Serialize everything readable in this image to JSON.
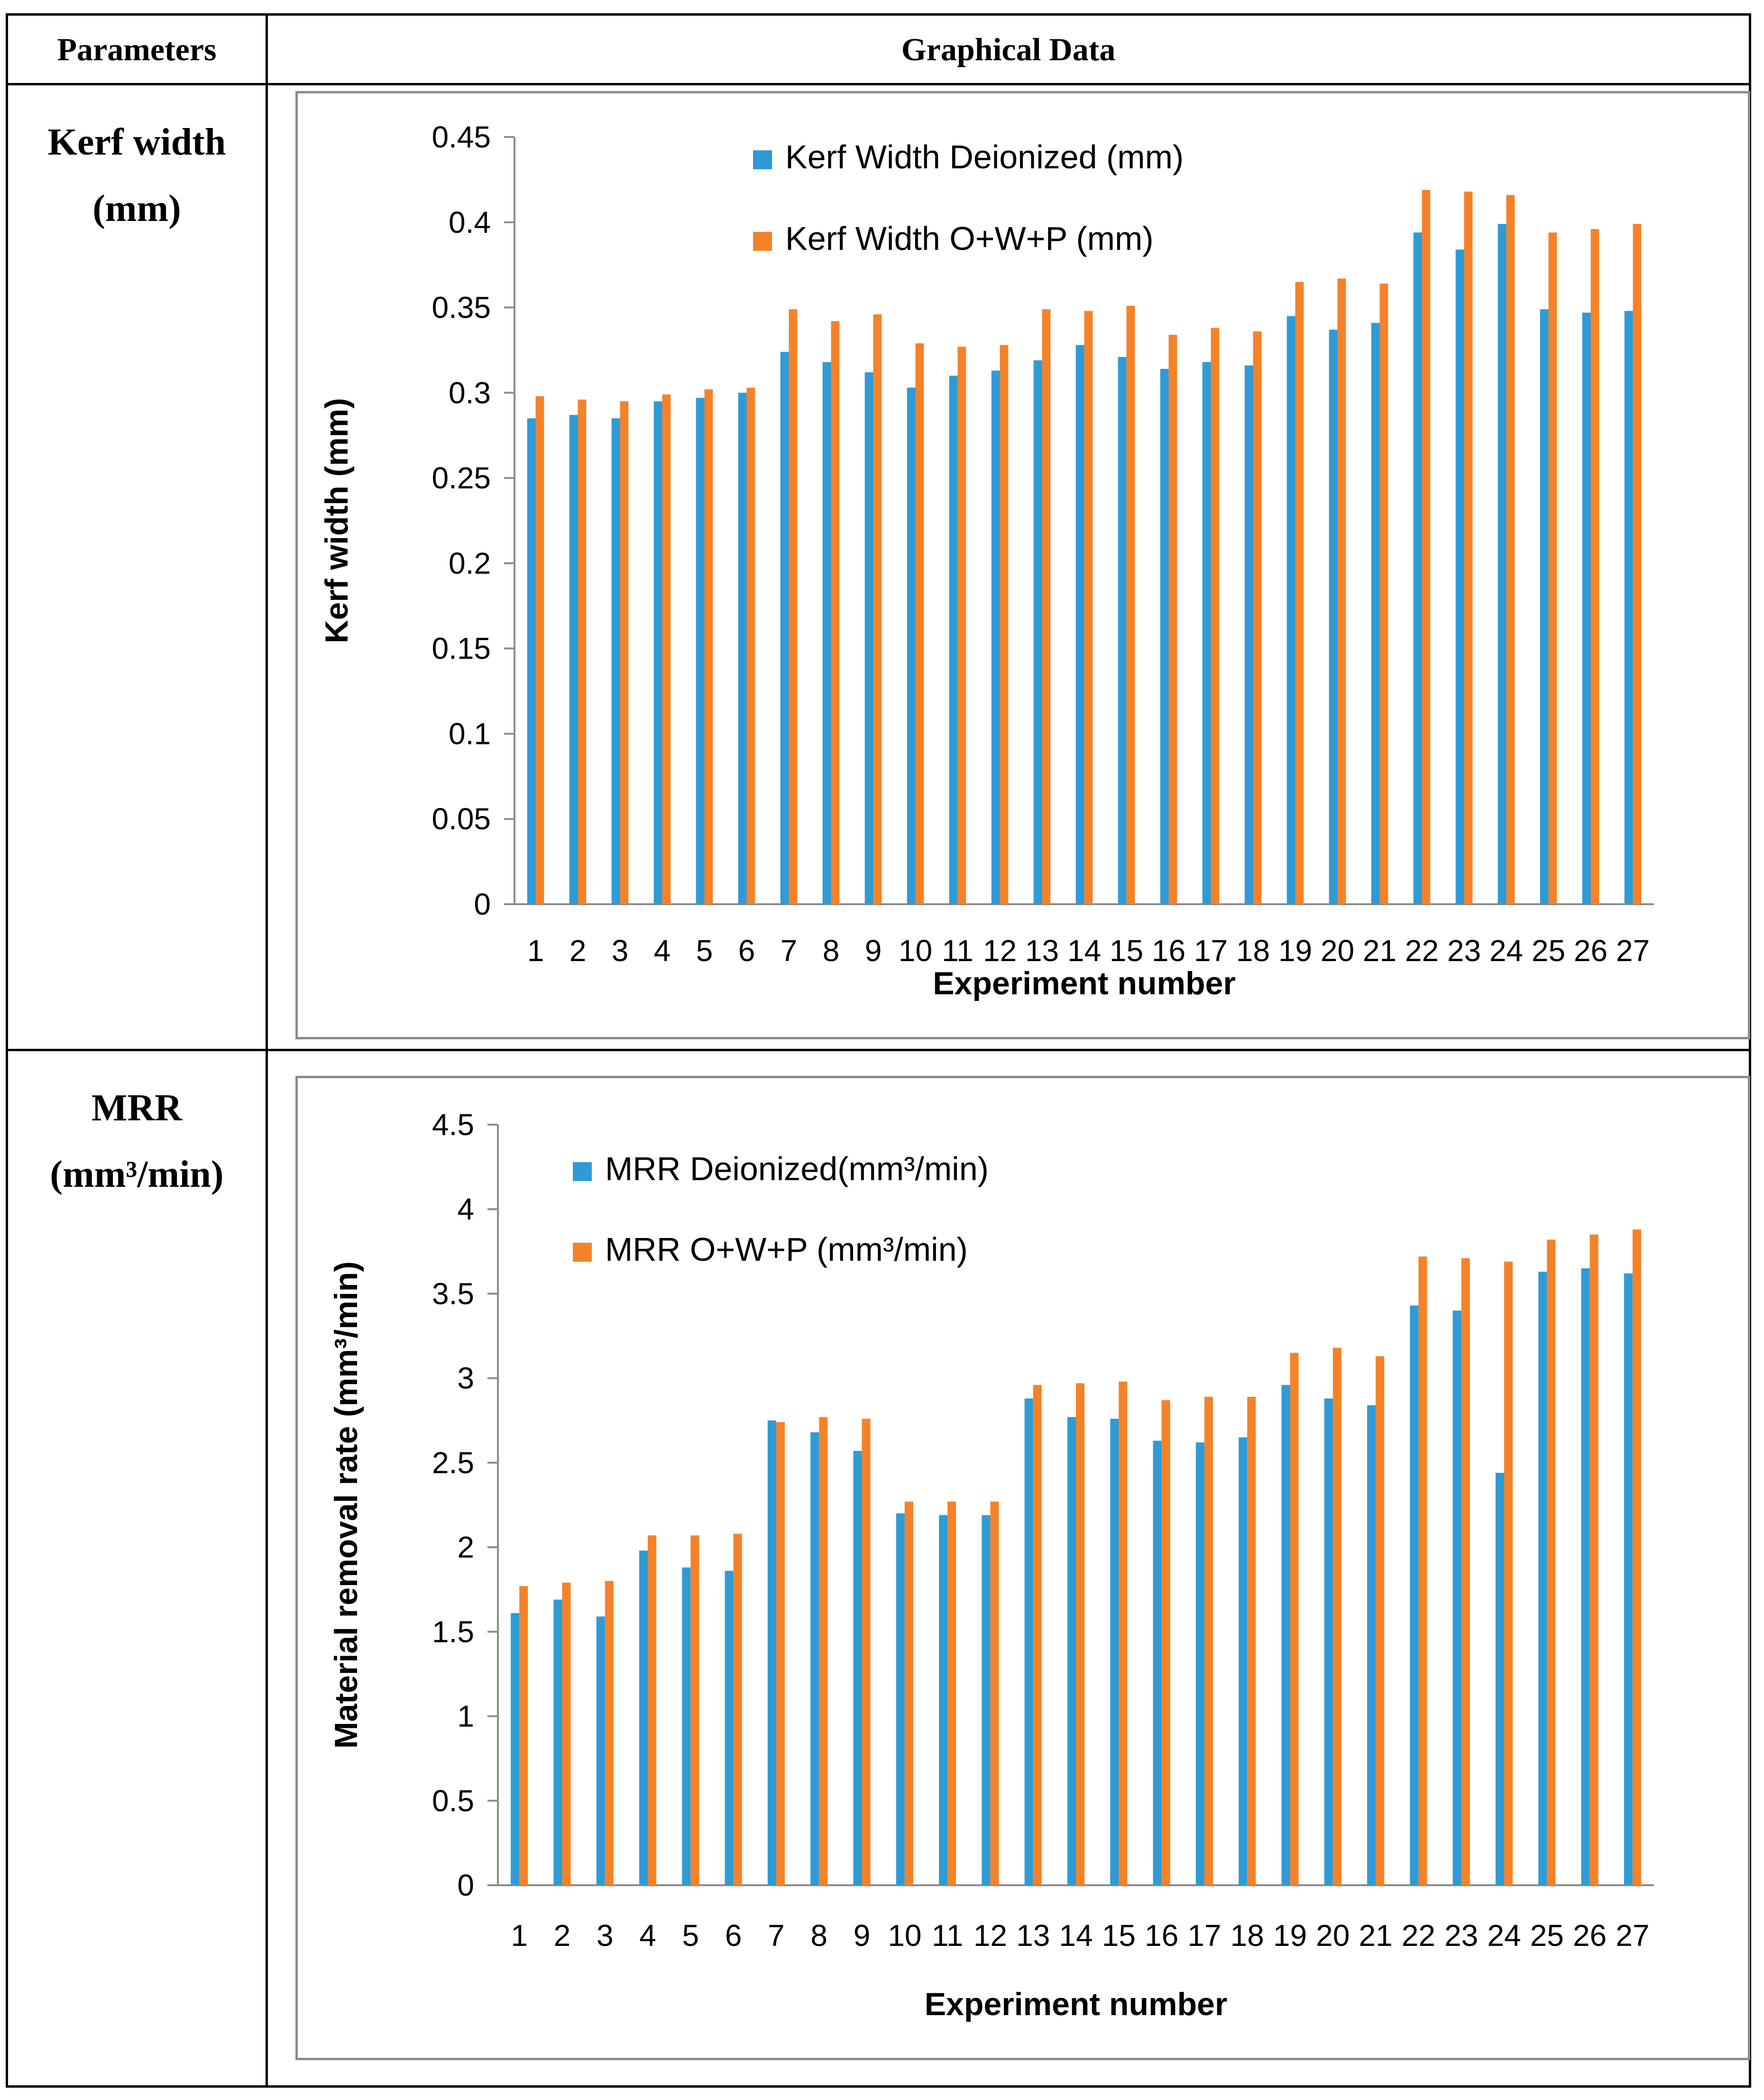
{
  "table": {
    "header_parameters": "Parameters",
    "header_graphical": "Graphical Data"
  },
  "rows": [
    {
      "param_line1": "Kerf width",
      "param_line2": "(mm)"
    },
    {
      "param_line1": "MRR",
      "param_line2": "(mm³/min)"
    }
  ],
  "colors": {
    "deionized": "#2E9BD6",
    "owp": "#F58228",
    "axis": "#8c8c8c"
  },
  "chart_data": [
    {
      "type": "bar",
      "title": "",
      "xlabel": "Experiment number",
      "ylabel": "Kerf width (mm)",
      "ylim": [
        0,
        0.45
      ],
      "yticks": [
        0,
        0.05,
        0.1,
        0.15,
        0.2,
        0.25,
        0.3,
        0.35,
        0.4,
        0.45
      ],
      "ytick_labels": [
        "0",
        "0.05",
        "0.1",
        "0.15",
        "0.2",
        "0.25",
        "0.3",
        "0.35",
        "0.4",
        "0.45"
      ],
      "legend_position": "top-center",
      "grid": false,
      "categories": [
        "1",
        "2",
        "3",
        "4",
        "5",
        "6",
        "7",
        "8",
        "9",
        "10",
        "11",
        "12",
        "13",
        "14",
        "15",
        "16",
        "17",
        "18",
        "19",
        "20",
        "21",
        "22",
        "23",
        "24",
        "25",
        "26",
        "27"
      ],
      "series": [
        {
          "name": "Kerf Width Deionized  (mm)",
          "values": [
            0.285,
            0.287,
            0.285,
            0.295,
            0.297,
            0.3,
            0.324,
            0.318,
            0.312,
            0.303,
            0.31,
            0.313,
            0.319,
            0.328,
            0.321,
            0.314,
            0.318,
            0.316,
            0.345,
            0.337,
            0.341,
            0.394,
            0.384,
            0.399,
            0.349,
            0.347,
            0.348
          ]
        },
        {
          "name": "Kerf Width O+W+P (mm)",
          "values": [
            0.298,
            0.296,
            0.295,
            0.299,
            0.302,
            0.303,
            0.349,
            0.342,
            0.346,
            0.329,
            0.327,
            0.328,
            0.349,
            0.348,
            0.351,
            0.334,
            0.338,
            0.336,
            0.365,
            0.367,
            0.364,
            0.419,
            0.418,
            0.416,
            0.394,
            0.396,
            0.399
          ]
        }
      ]
    },
    {
      "type": "bar",
      "title": "",
      "xlabel": "Experiment number",
      "ylabel": "Material removal rate (mm³/min)",
      "ylim": [
        0,
        4.5
      ],
      "yticks": [
        0,
        0.5,
        1,
        1.5,
        2,
        2.5,
        3,
        3.5,
        4,
        4.5
      ],
      "ytick_labels": [
        "0",
        "0.5",
        "1",
        "1.5",
        "2",
        "2.5",
        "3",
        "3.5",
        "4",
        "4.5"
      ],
      "legend_position": "top-left",
      "grid": false,
      "categories": [
        "1",
        "2",
        "3",
        "4",
        "5",
        "6",
        "7",
        "8",
        "9",
        "10",
        "11",
        "12",
        "13",
        "14",
        "15",
        "16",
        "17",
        "18",
        "19",
        "20",
        "21",
        "22",
        "23",
        "24",
        "25",
        "26",
        "27"
      ],
      "series": [
        {
          "name": "MRR Deionized(mm³/min)",
          "values": [
            1.61,
            1.69,
            1.59,
            1.98,
            1.88,
            1.86,
            2.75,
            2.68,
            2.57,
            2.2,
            2.19,
            2.19,
            2.88,
            2.77,
            2.76,
            2.63,
            2.62,
            2.65,
            2.96,
            2.88,
            2.84,
            3.43,
            3.4,
            2.44,
            3.63,
            3.65,
            3.62
          ]
        },
        {
          "name": "MRR O+W+P (mm³/min)",
          "values": [
            1.77,
            1.79,
            1.8,
            2.07,
            2.07,
            2.08,
            2.74,
            2.77,
            2.76,
            2.27,
            2.27,
            2.27,
            2.96,
            2.97,
            2.98,
            2.87,
            2.89,
            2.89,
            3.15,
            3.18,
            3.13,
            3.72,
            3.71,
            3.69,
            3.82,
            3.85,
            3.88
          ]
        }
      ]
    }
  ]
}
